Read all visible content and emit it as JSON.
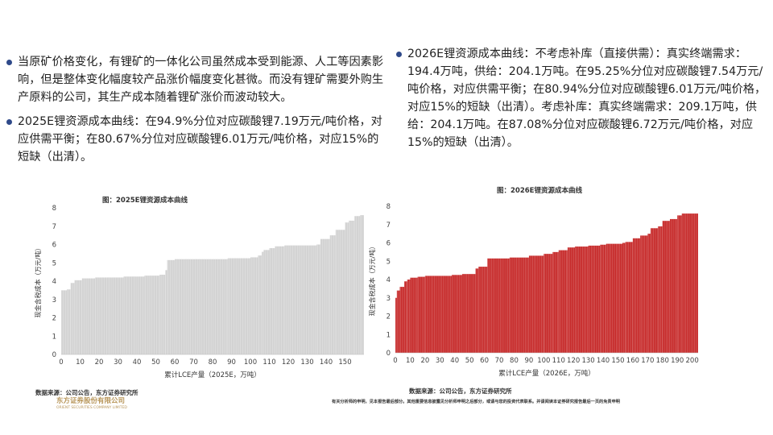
{
  "left_text": {
    "bullets": [
      "当原矿价格变化，有锂矿的一体化公司虽然成本受到能源、人工等因素影响，但是整体变化幅度较产品涨价幅度变化甚微。而没有锂矿需要外购生产原料的公司，其生产成本随着锂矿涨价而波动较大。",
      "2025E锂资源成本曲线：在94.9%分位对应碳酸锂7.19万元/吨价格，对应供需平衡；在80.67%分位对应碳酸锂6.01万元/吨价格，对应15%的短缺（出清）。"
    ]
  },
  "right_text": {
    "bullets": [
      "2026E锂资源成本曲线：不考虑补库（直接供需）：真实终端需求：194.4万吨，供给：204.1万吨。在95.25%分位对应碳酸锂7.54万元/吨价格，对应供需平衡；在80.94%分位对应碳酸锂6.01万元/吨价格，对应15%的短缺（出清）。考虑补库：真实终端需求：209.1万吨，供给：204.1万吨。在87.08%分位对应碳酸锂6.72万元/吨价格，对应15%的短缺（出清）。"
    ]
  },
  "chart_data": [
    {
      "type": "bar",
      "title": "图：2025E锂资源成本曲线",
      "xlabel": "累计LCE产量（2025E，万吨）",
      "ylabel": "现金含税成本（万元/吨）",
      "xlim": [
        0,
        160
      ],
      "ylim": [
        0,
        8
      ],
      "xticks": [
        0,
        10,
        20,
        30,
        40,
        50,
        60,
        70,
        80,
        90,
        100,
        110,
        120,
        130,
        140,
        150
      ],
      "yticks": [
        0,
        1,
        2,
        3,
        4,
        5,
        6,
        7,
        8
      ],
      "color": "#d3d3d3",
      "steps": [
        [
          0,
          3.5
        ],
        [
          3,
          3.55
        ],
        [
          5,
          3.9
        ],
        [
          7,
          4.05
        ],
        [
          11,
          4.15
        ],
        [
          18,
          4.2
        ],
        [
          33,
          4.25
        ],
        [
          44,
          4.3
        ],
        [
          52,
          4.35
        ],
        [
          55,
          4.6
        ],
        [
          56,
          5.15
        ],
        [
          60,
          5.2
        ],
        [
          88,
          5.25
        ],
        [
          100,
          5.3
        ],
        [
          104,
          5.4
        ],
        [
          106,
          5.6
        ],
        [
          107,
          5.7
        ],
        [
          110,
          5.8
        ],
        [
          113,
          5.9
        ],
        [
          118,
          5.95
        ],
        [
          135,
          6.0
        ],
        [
          137,
          6.3
        ],
        [
          142,
          6.5
        ],
        [
          145,
          6.8
        ],
        [
          150,
          7.2
        ],
        [
          152,
          7.3
        ],
        [
          155,
          7.55
        ],
        [
          158,
          7.6
        ]
      ],
      "xmax": 160
    },
    {
      "type": "bar",
      "title": "图：2026E锂资源成本曲线",
      "xlabel": "累计LCE产量（2026E，万吨）",
      "ylabel": "现金含税成本（万元/吨）",
      "xlim": [
        0,
        204
      ],
      "ylim": [
        0,
        8
      ],
      "xticks": [
        0,
        10,
        20,
        30,
        40,
        50,
        60,
        70,
        80,
        90,
        100,
        110,
        120,
        130,
        140,
        150,
        160,
        170,
        180,
        190,
        200
      ],
      "yticks": [
        0,
        1,
        2,
        3,
        4,
        5,
        6,
        7,
        8
      ],
      "color": "#c62828",
      "steps": [
        [
          0,
          3.0
        ],
        [
          1,
          3.4
        ],
        [
          3,
          3.6
        ],
        [
          6,
          3.9
        ],
        [
          8,
          4.0
        ],
        [
          10,
          4.1
        ],
        [
          15,
          4.15
        ],
        [
          20,
          4.2
        ],
        [
          38,
          4.25
        ],
        [
          45,
          4.3
        ],
        [
          54,
          4.6
        ],
        [
          56,
          4.7
        ],
        [
          62,
          5.15
        ],
        [
          77,
          5.2
        ],
        [
          90,
          5.3
        ],
        [
          100,
          5.4
        ],
        [
          106,
          5.5
        ],
        [
          110,
          5.6
        ],
        [
          116,
          5.75
        ],
        [
          121,
          5.8
        ],
        [
          130,
          5.85
        ],
        [
          138,
          5.9
        ],
        [
          142,
          5.95
        ],
        [
          153,
          6.0
        ],
        [
          155,
          6.05
        ],
        [
          160,
          6.25
        ],
        [
          165,
          6.4
        ],
        [
          170,
          6.5
        ],
        [
          172,
          6.8
        ],
        [
          177,
          6.9
        ],
        [
          180,
          7.2
        ],
        [
          185,
          7.3
        ],
        [
          190,
          7.5
        ],
        [
          193,
          7.6
        ]
      ],
      "xmax": 204
    }
  ],
  "footer": {
    "left_source": "数据来源：公司公告，东方证券研究所",
    "right_source": "数据来源：公司公告，东方证券研究所",
    "brand_cn": "东方证券股份有限公司",
    "brand_en": "ORIENT SECURITIES COMPANY LIMITED",
    "disclaimer": "有关分析师的申明，见本报告最后部分。其他重要信息披露见分析师申明之后部分，或请与您的投资代表联系。并请阅读本证券研究报告最后一页的免责申明"
  }
}
